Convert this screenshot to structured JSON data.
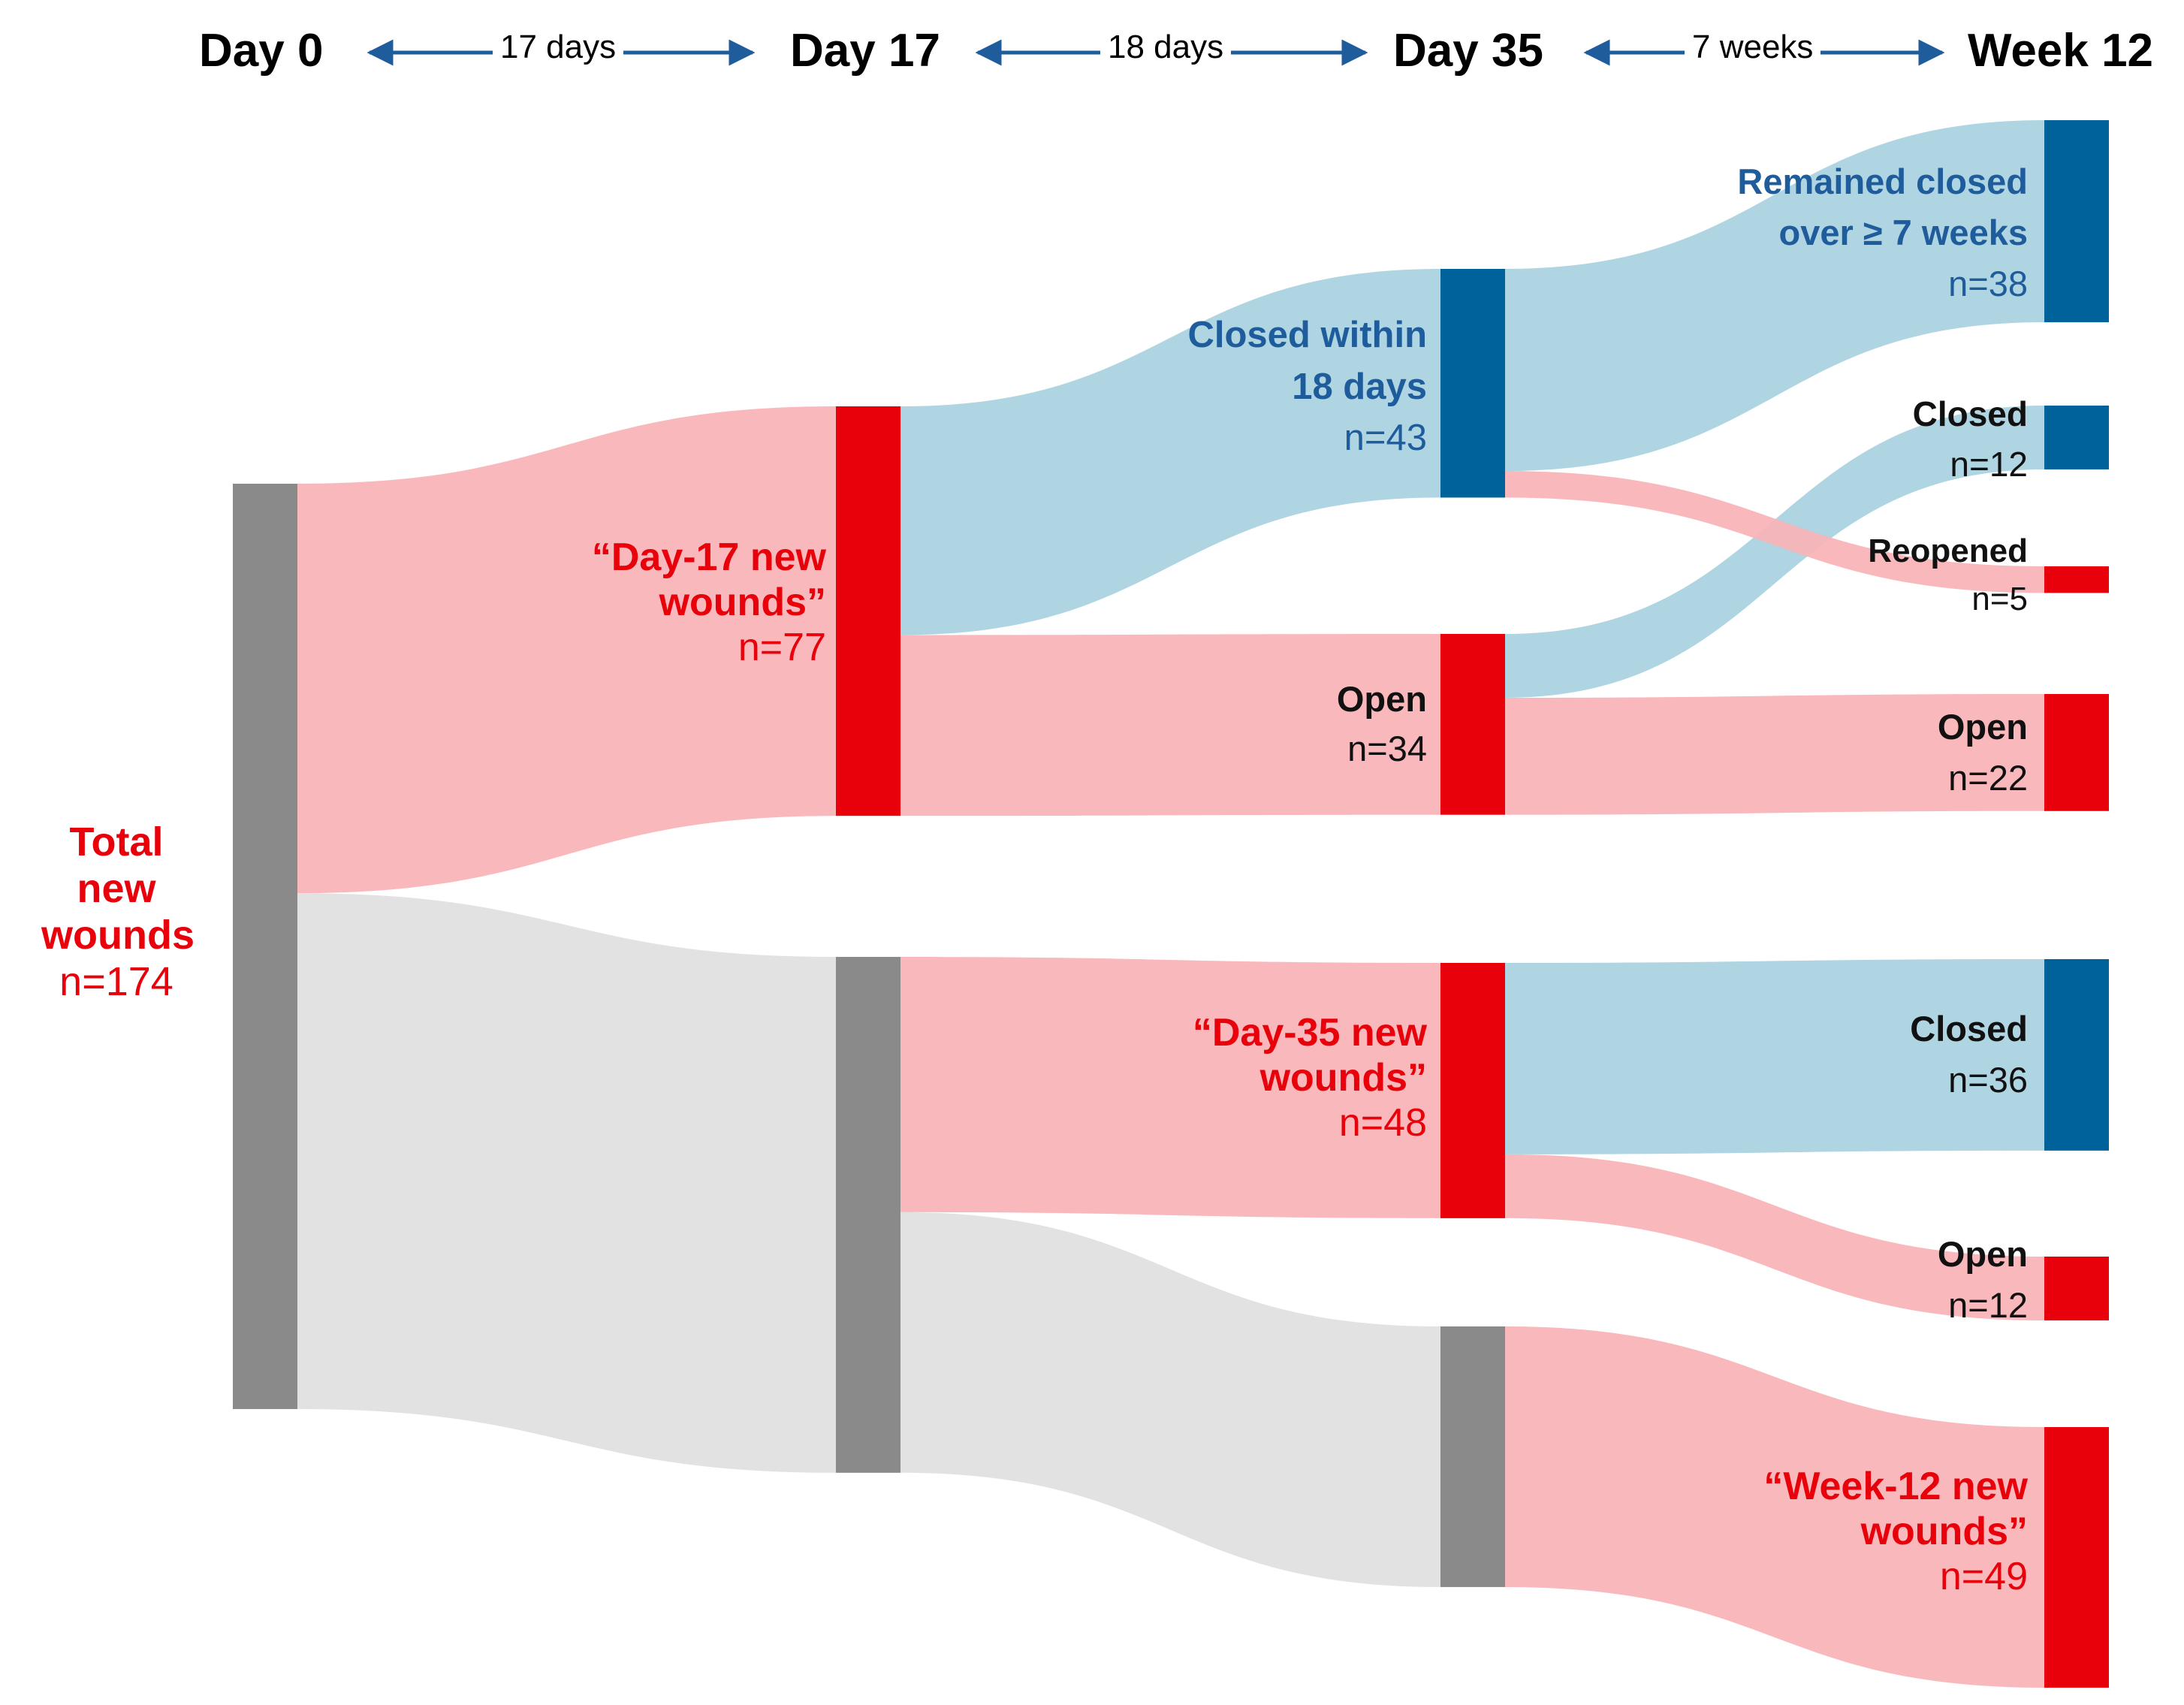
{
  "timeline": {
    "points": [
      "Day 0",
      "Day 17",
      "Day 35",
      "Week 12"
    ],
    "intervals": [
      "17 days",
      "18 days",
      "7 weeks"
    ]
  },
  "colors": {
    "red_node": "#e8000b",
    "red_flow": "#f9b3b6",
    "blue_node": "#00629b",
    "blue_flow": "#a8d1e0",
    "grey_node": "#8a8a8a",
    "grey_flow": "#e0e0e0",
    "arrow": "#1f5c9c"
  },
  "chart_data": {
    "type": "sankey",
    "nodes": [
      {
        "id": "total",
        "title": "Total new wounds",
        "value": 174,
        "count": "n=174"
      },
      {
        "id": "d17_new",
        "title": "“Day-17 new wounds”",
        "value": 77,
        "count": "n=77"
      },
      {
        "id": "d17_rest",
        "title": "",
        "value": 97
      },
      {
        "id": "d35_closed",
        "title": "Closed within 18 days",
        "value": 43,
        "count": "n=43"
      },
      {
        "id": "d35_open",
        "title": "Open",
        "value": 34,
        "count": "n=34"
      },
      {
        "id": "d35_new",
        "title": "“Day-35 new wounds”",
        "value": 48,
        "count": "n=48"
      },
      {
        "id": "d35_rest",
        "title": "",
        "value": 49
      },
      {
        "id": "w12_remained",
        "title": "Remained closed over ≥ 7 weeks",
        "value": 38,
        "count": "n=38"
      },
      {
        "id": "w12_closed_a",
        "title": "Closed",
        "value": 12,
        "count": "n=12"
      },
      {
        "id": "w12_reopened",
        "title": "Reopened",
        "value": 5,
        "count": "n=5"
      },
      {
        "id": "w12_open_a",
        "title": "Open",
        "value": 22,
        "count": "n=22"
      },
      {
        "id": "w12_closed_b",
        "title": "Closed",
        "value": 36,
        "count": "n=36"
      },
      {
        "id": "w12_open_b",
        "title": "Open",
        "value": 12,
        "count": "n=12"
      },
      {
        "id": "w12_new",
        "title": "“Week-12 new wounds”",
        "value": 49,
        "count": "n=49"
      }
    ],
    "links": [
      {
        "source": "total",
        "target": "d17_new",
        "value": 77
      },
      {
        "source": "total",
        "target": "d17_rest",
        "value": 97
      },
      {
        "source": "d17_new",
        "target": "d35_closed",
        "value": 43
      },
      {
        "source": "d17_new",
        "target": "d35_open",
        "value": 34
      },
      {
        "source": "d17_rest",
        "target": "d35_new",
        "value": 48
      },
      {
        "source": "d17_rest",
        "target": "d35_rest",
        "value": 49
      },
      {
        "source": "d35_closed",
        "target": "w12_remained",
        "value": 38
      },
      {
        "source": "d35_closed",
        "target": "w12_reopened",
        "value": 5
      },
      {
        "source": "d35_open",
        "target": "w12_closed_a",
        "value": 12
      },
      {
        "source": "d35_open",
        "target": "w12_open_a",
        "value": 22
      },
      {
        "source": "d35_new",
        "target": "w12_closed_b",
        "value": 36
      },
      {
        "source": "d35_new",
        "target": "w12_open_b",
        "value": 12
      },
      {
        "source": "d35_rest",
        "target": "w12_new",
        "value": 49
      }
    ]
  }
}
